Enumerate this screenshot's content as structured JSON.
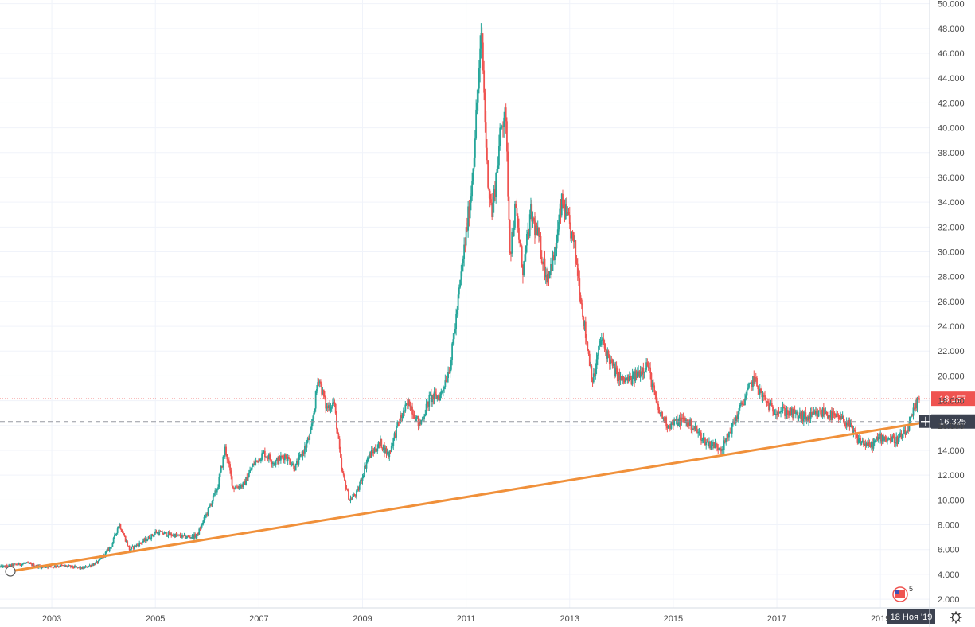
{
  "chart_data": {
    "type": "candlestick",
    "title": "",
    "xlabel": "",
    "ylabel": "",
    "x_tick_labels": [
      "2003",
      "2005",
      "2007",
      "2009",
      "2011",
      "2013",
      "2015",
      "2017",
      "2019"
    ],
    "x_tick_years": [
      2003,
      2005,
      2007,
      2009,
      2011,
      2013,
      2015,
      2017,
      2019
    ],
    "y_tick_labels": [
      "2.000",
      "4.000",
      "6.000",
      "8.000",
      "10.000",
      "12.000",
      "14.000",
      "16.000",
      "18.000",
      "20.000",
      "22.000",
      "24.000",
      "26.000",
      "28.000",
      "30.000",
      "32.000",
      "34.000",
      "36.000",
      "38.000",
      "40.000",
      "42.000",
      "44.000",
      "46.000",
      "48.000",
      "50.000"
    ],
    "y_tick_values": [
      2,
      4,
      6,
      8,
      10,
      12,
      14,
      16,
      18,
      20,
      22,
      24,
      26,
      28,
      30,
      32,
      34,
      36,
      38,
      40,
      42,
      44,
      46,
      48,
      50
    ],
    "ylim": [
      1.3,
      50.3
    ],
    "xlim": [
      2002.0,
      2019.95
    ],
    "grid": true,
    "price_anchors": [
      [
        2002.0,
        4.6
      ],
      [
        2002.5,
        4.9
      ],
      [
        2002.8,
        4.6
      ],
      [
        2003.2,
        4.7
      ],
      [
        2003.6,
        4.5
      ],
      [
        2003.9,
        5.0
      ],
      [
        2004.15,
        6.3
      ],
      [
        2004.3,
        8.1
      ],
      [
        2004.5,
        6.0
      ],
      [
        2004.9,
        7.0
      ],
      [
        2005.0,
        7.4
      ],
      [
        2005.3,
        7.2
      ],
      [
        2005.6,
        7.0
      ],
      [
        2005.8,
        7.1
      ],
      [
        2006.0,
        9.0
      ],
      [
        2006.2,
        11.0
      ],
      [
        2006.35,
        14.2
      ],
      [
        2006.5,
        11.0
      ],
      [
        2006.7,
        11.2
      ],
      [
        2006.9,
        12.9
      ],
      [
        2007.1,
        13.8
      ],
      [
        2007.3,
        13.0
      ],
      [
        2007.5,
        13.6
      ],
      [
        2007.7,
        12.6
      ],
      [
        2007.9,
        14.3
      ],
      [
        2008.0,
        15.3
      ],
      [
        2008.15,
        20.0
      ],
      [
        2008.3,
        17.4
      ],
      [
        2008.45,
        17.9
      ],
      [
        2008.6,
        12.3
      ],
      [
        2008.75,
        10.0
      ],
      [
        2008.9,
        10.6
      ],
      [
        2009.1,
        13.4
      ],
      [
        2009.35,
        14.6
      ],
      [
        2009.5,
        13.6
      ],
      [
        2009.7,
        16.3
      ],
      [
        2009.9,
        17.9
      ],
      [
        2010.1,
        16.0
      ],
      [
        2010.3,
        18.2
      ],
      [
        2010.5,
        18.4
      ],
      [
        2010.7,
        21.0
      ],
      [
        2010.9,
        28.0
      ],
      [
        2011.1,
        35.0
      ],
      [
        2011.3,
        47.6
      ],
      [
        2011.4,
        37.0
      ],
      [
        2011.5,
        33.0
      ],
      [
        2011.65,
        39.0
      ],
      [
        2011.75,
        42.0
      ],
      [
        2011.85,
        30.0
      ],
      [
        2011.95,
        33.5
      ],
      [
        2012.1,
        28.5
      ],
      [
        2012.25,
        33.0
      ],
      [
        2012.4,
        31.0
      ],
      [
        2012.55,
        28.0
      ],
      [
        2012.7,
        29.5
      ],
      [
        2012.85,
        34.0
      ],
      [
        2013.0,
        32.0
      ],
      [
        2013.1,
        30.2
      ],
      [
        2013.3,
        23.5
      ],
      [
        2013.45,
        19.5
      ],
      [
        2013.6,
        23.0
      ],
      [
        2013.85,
        20.5
      ],
      [
        2014.0,
        19.6
      ],
      [
        2014.2,
        19.7
      ],
      [
        2014.5,
        21.0
      ],
      [
        2014.7,
        17.3
      ],
      [
        2014.9,
        16.0
      ],
      [
        2015.2,
        16.5
      ],
      [
        2015.4,
        15.8
      ],
      [
        2015.65,
        14.6
      ],
      [
        2015.95,
        14.2
      ],
      [
        2016.2,
        16.5
      ],
      [
        2016.55,
        19.8
      ],
      [
        2016.7,
        18.5
      ],
      [
        2016.9,
        17.3
      ],
      [
        2017.1,
        17.2
      ],
      [
        2017.4,
        16.8
      ],
      [
        2017.6,
        16.6
      ],
      [
        2017.9,
        17.1
      ],
      [
        2018.1,
        16.7
      ],
      [
        2018.35,
        16.3
      ],
      [
        2018.55,
        14.9
      ],
      [
        2018.8,
        14.3
      ],
      [
        2019.0,
        15.1
      ],
      [
        2019.3,
        14.8
      ],
      [
        2019.5,
        15.4
      ],
      [
        2019.65,
        17.2
      ],
      [
        2019.75,
        18.157
      ]
    ],
    "trendline": {
      "x": [
        2002.2,
        2019.95
      ],
      "y": [
        4.25,
        16.325
      ],
      "color": "#f0903a"
    },
    "last_price": {
      "value": 18.157,
      "label": "18.157",
      "color": "#ef5350"
    },
    "crosshair": {
      "value": 16.325,
      "label": "16.325",
      "time_label": "18 Ноя '19",
      "time_x": 2019.95
    },
    "colors": {
      "up": "#26a69a",
      "down": "#ef5350",
      "grid": "#f0f3fa",
      "axis_text": "#4a4a4a",
      "crosshair": "#9598a1",
      "label_dark": "#3c4250"
    },
    "badge": {
      "count": "5",
      "icon": "flag-badge-icon"
    },
    "settings_icon": "gear-icon"
  }
}
